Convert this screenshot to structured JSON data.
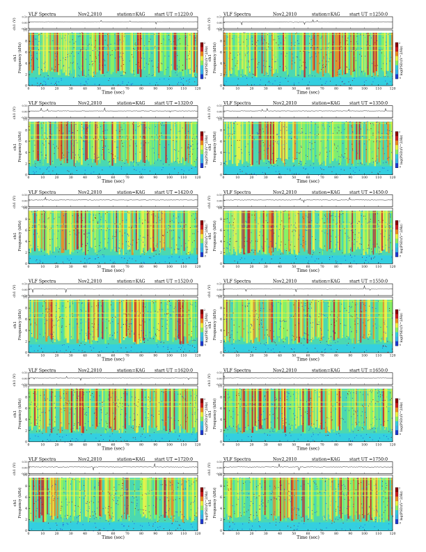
{
  "page": {
    "background": "#ffffff"
  },
  "header": {
    "title": "VLF Spectra",
    "date": "Nov2,2010",
    "station": "station=KAG"
  },
  "axes": {
    "xlabel": "Time (sec)",
    "ylabel_top": "ch1 (V)",
    "ylabel_bottom": "Frequency (kHz)",
    "ylabel_side": "ch1",
    "colorbar_label": "log(PSD)(V^2/Hz)"
  },
  "colors": {
    "colormap": [
      "#1f3bd1",
      "#3ab4f0",
      "#34cfe0",
      "#8ff55c",
      "#f2f542",
      "#f28a1f",
      "#d01d1d",
      "#8b0000"
    ],
    "trace": "#000000",
    "axis": "#000000",
    "cyan_bg": "#34cfe0"
  },
  "chart_data": [
    {
      "type": "heatmap",
      "start_ut": "start UT =1220:0",
      "xlim": [
        0,
        120
      ],
      "xticks": [
        0,
        10,
        20,
        30,
        40,
        50,
        60,
        70,
        80,
        90,
        100,
        110,
        120
      ],
      "trace_ylim": [
        -0.1,
        0.1
      ],
      "trace_yticks": [
        "0.10",
        "0.00",
        "-0.10"
      ],
      "freq_ylim": [
        0,
        10
      ],
      "freq_yticks": [
        0,
        2,
        4,
        6,
        8,
        10
      ],
      "colorbar_ticks": [
        "2",
        "-5"
      ]
    },
    {
      "type": "heatmap",
      "start_ut": "start UT =1250:0",
      "xlim": [
        0,
        120
      ],
      "xticks": [
        0,
        10,
        20,
        30,
        40,
        50,
        60,
        70,
        80,
        90,
        100,
        110,
        120
      ],
      "trace_ylim": [
        -0.1,
        0.1
      ],
      "trace_yticks": [
        "0.10",
        "0.00",
        "-0.10"
      ],
      "freq_ylim": [
        0,
        10
      ],
      "freq_yticks": [
        0,
        2,
        4,
        6,
        8,
        10
      ],
      "colorbar_ticks": [
        "2",
        "-5"
      ]
    },
    {
      "type": "heatmap",
      "start_ut": "start UT =1320:0",
      "xlim": [
        0,
        120
      ],
      "xticks": [
        0,
        10,
        20,
        30,
        40,
        50,
        60,
        70,
        80,
        90,
        100,
        110,
        120
      ],
      "trace_ylim": [
        -0.1,
        0.1
      ],
      "trace_yticks": [
        "0.10",
        "0.00",
        "-0.10"
      ],
      "freq_ylim": [
        0,
        10
      ],
      "freq_yticks": [
        0,
        2,
        4,
        6,
        8,
        10
      ],
      "colorbar_ticks": [
        "2",
        "-5"
      ]
    },
    {
      "type": "heatmap",
      "start_ut": "start UT =1350:0",
      "xlim": [
        0,
        120
      ],
      "xticks": [
        0,
        10,
        20,
        30,
        40,
        50,
        60,
        70,
        80,
        90,
        100,
        110,
        120
      ],
      "trace_ylim": [
        -0.1,
        0.1
      ],
      "trace_yticks": [
        "0.10",
        "0.00",
        "-0.10"
      ],
      "freq_ylim": [
        0,
        10
      ],
      "freq_yticks": [
        0,
        2,
        4,
        6,
        8,
        10
      ],
      "colorbar_ticks": [
        "2",
        "-5"
      ]
    },
    {
      "type": "heatmap",
      "start_ut": "start UT =1420:0",
      "xlim": [
        0,
        120
      ],
      "xticks": [
        0,
        10,
        20,
        30,
        40,
        50,
        60,
        70,
        80,
        90,
        100,
        110,
        120
      ],
      "trace_ylim": [
        -0.1,
        0.1
      ],
      "trace_yticks": [
        "0.10",
        "0.00",
        "-0.10"
      ],
      "freq_ylim": [
        0,
        10
      ],
      "freq_yticks": [
        0,
        2,
        4,
        6,
        8,
        10
      ],
      "colorbar_ticks": [
        "2",
        "-5"
      ]
    },
    {
      "type": "heatmap",
      "start_ut": "start UT =1450:0",
      "xlim": [
        0,
        120
      ],
      "xticks": [
        0,
        10,
        20,
        30,
        40,
        50,
        60,
        70,
        80,
        90,
        100,
        110,
        120
      ],
      "trace_ylim": [
        -0.1,
        0.1
      ],
      "trace_yticks": [
        "0.10",
        "0.00",
        "-0.10"
      ],
      "freq_ylim": [
        0,
        10
      ],
      "freq_yticks": [
        0,
        2,
        4,
        6,
        8,
        10
      ],
      "colorbar_ticks": [
        "2",
        "-5"
      ]
    },
    {
      "type": "heatmap",
      "start_ut": "start UT =1520:0",
      "xlim": [
        0,
        120
      ],
      "xticks": [
        0,
        10,
        20,
        30,
        40,
        50,
        60,
        70,
        80,
        90,
        100,
        110,
        120
      ],
      "trace_ylim": [
        -0.1,
        0.1
      ],
      "trace_yticks": [
        "0.10",
        "0.00",
        "-0.10"
      ],
      "freq_ylim": [
        0,
        10
      ],
      "freq_yticks": [
        0,
        2,
        4,
        6,
        8,
        10
      ],
      "colorbar_ticks": [
        "2",
        "-5"
      ]
    },
    {
      "type": "heatmap",
      "start_ut": "start UT =1550:0",
      "xlim": [
        0,
        120
      ],
      "xticks": [
        0,
        10,
        20,
        30,
        40,
        50,
        60,
        70,
        80,
        90,
        100,
        110,
        120
      ],
      "trace_ylim": [
        -0.1,
        0.1
      ],
      "trace_yticks": [
        "0.10",
        "0.00",
        "-0.10"
      ],
      "freq_ylim": [
        0,
        10
      ],
      "freq_yticks": [
        0,
        2,
        4,
        6,
        8,
        10
      ],
      "colorbar_ticks": [
        "2",
        "-5"
      ]
    },
    {
      "type": "heatmap",
      "start_ut": "start UT =1620:0",
      "xlim": [
        0,
        120
      ],
      "xticks": [
        0,
        10,
        20,
        30,
        40,
        50,
        60,
        70,
        80,
        90,
        100,
        110,
        120
      ],
      "trace_ylim": [
        -0.1,
        0.1
      ],
      "trace_yticks": [
        "0.10",
        "0.00",
        "-0.10"
      ],
      "freq_ylim": [
        0,
        10
      ],
      "freq_yticks": [
        0,
        2,
        4,
        6,
        8,
        10
      ],
      "colorbar_ticks": [
        "2",
        "-5"
      ]
    },
    {
      "type": "heatmap",
      "start_ut": "start UT =1650:0",
      "xlim": [
        0,
        120
      ],
      "xticks": [
        0,
        10,
        20,
        30,
        40,
        50,
        60,
        70,
        80,
        90,
        100,
        110,
        120
      ],
      "trace_ylim": [
        -0.1,
        0.1
      ],
      "trace_yticks": [
        "0.10",
        "0.00",
        "-0.10"
      ],
      "freq_ylim": [
        0,
        10
      ],
      "freq_yticks": [
        0,
        2,
        4,
        6,
        8,
        10
      ],
      "colorbar_ticks": [
        "2",
        "-5"
      ]
    },
    {
      "type": "heatmap",
      "start_ut": "start UT =1720:0",
      "xlim": [
        0,
        120
      ],
      "xticks": [
        0,
        10,
        20,
        30,
        40,
        50,
        60,
        70,
        80,
        90,
        100,
        110,
        120
      ],
      "trace_ylim": [
        -0.1,
        0.1
      ],
      "trace_yticks": [
        "0.10",
        "0.00",
        "-0.10"
      ],
      "freq_ylim": [
        0,
        10
      ],
      "freq_yticks": [
        0,
        2,
        4,
        6,
        8,
        10
      ],
      "colorbar_ticks": [
        "2",
        "-5"
      ]
    },
    {
      "type": "heatmap",
      "start_ut": "start UT =1750:0",
      "xlim": [
        0,
        120
      ],
      "xticks": [
        0,
        10,
        20,
        30,
        40,
        50,
        60,
        70,
        80,
        90,
        100,
        110,
        120
      ],
      "trace_ylim": [
        -0.1,
        0.1
      ],
      "trace_yticks": [
        "0.10",
        "0.00",
        "-0.10"
      ],
      "freq_ylim": [
        0,
        10
      ],
      "freq_yticks": [
        0,
        2,
        4,
        6,
        8,
        10
      ],
      "colorbar_ticks": [
        "2",
        "-5"
      ]
    }
  ]
}
